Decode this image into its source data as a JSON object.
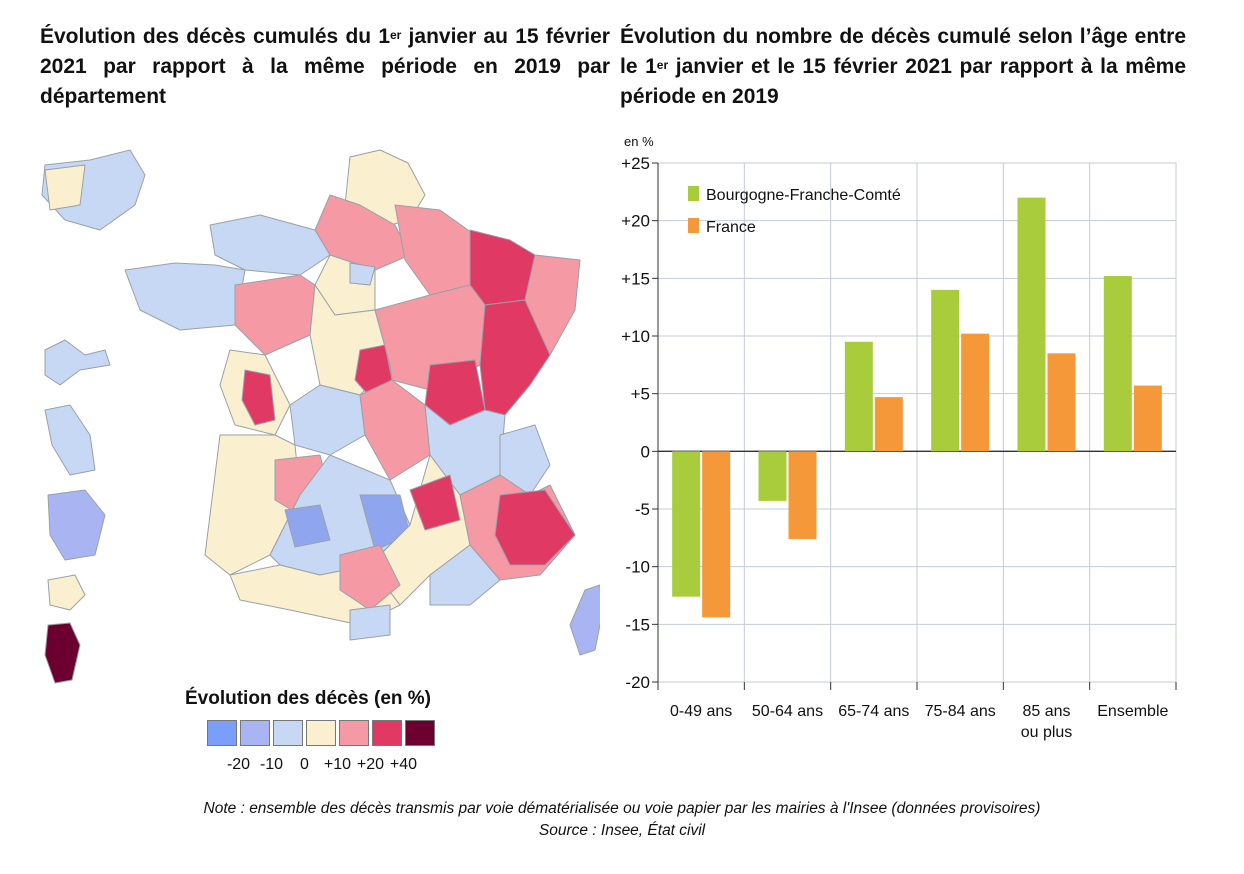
{
  "map": {
    "title_pre": "Évolution des décès cumulés du 1",
    "title_sup": "er",
    "title_post": " janvier au 15  février 2021 par rapport à la même période en 2019 par département",
    "legend_title": "Évolution des décès (en %)",
    "legend_colors": [
      "#7b9ef8",
      "#a8b5f2",
      "#c6d8f4",
      "#faf0d0",
      "#f59aa4",
      "#e03a64",
      "#6b0030"
    ],
    "legend_ticks": [
      "-20",
      "-10",
      "0",
      "+10",
      "+20",
      "+40"
    ]
  },
  "chart_data": {
    "type": "bar",
    "title_pre": "Évolution du nombre de décès cumulé selon l’âge entre le 1",
    "title_sup": "er",
    "title_post": " janvier et le 15  février 2021 par rapport à la même période en 2019",
    "unit_label": "en %",
    "categories": [
      "0-49 ans",
      "50-64 ans",
      "65-74 ans",
      "75-84 ans",
      "85 ans ou plus",
      "Ensemble"
    ],
    "category_lines": [
      [
        "0-49 ans"
      ],
      [
        "50-64 ans"
      ],
      [
        "65-74 ans"
      ],
      [
        "75-84 ans"
      ],
      [
        "85 ans",
        "ou plus"
      ],
      [
        "Ensemble"
      ]
    ],
    "series": [
      {
        "name": "Bourgogne-Franche-Comté",
        "color": "#a9cc3c",
        "values": [
          -12.6,
          -4.3,
          9.5,
          14.0,
          22.0,
          15.2
        ]
      },
      {
        "name": "France",
        "color": "#f4983a",
        "values": [
          -14.4,
          -7.6,
          4.7,
          10.2,
          8.5,
          5.7
        ]
      }
    ],
    "ylim": [
      -20,
      25
    ],
    "yticks": [
      -20,
      -15,
      -10,
      -5,
      0,
      5,
      10,
      15,
      20,
      25
    ],
    "ytick_labels": [
      "-20",
      "-15",
      "-10",
      "-5",
      "0",
      "+5",
      "+10",
      "+15",
      "+20",
      "+25"
    ],
    "grid": true,
    "legend_position": "top-left"
  },
  "note": {
    "line1": "Note : ensemble des décès transmis par voie dématérialisée ou voie papier par les mairies à l'Insee (données provisoires)",
    "line2": "Source : Insee, État civil"
  }
}
